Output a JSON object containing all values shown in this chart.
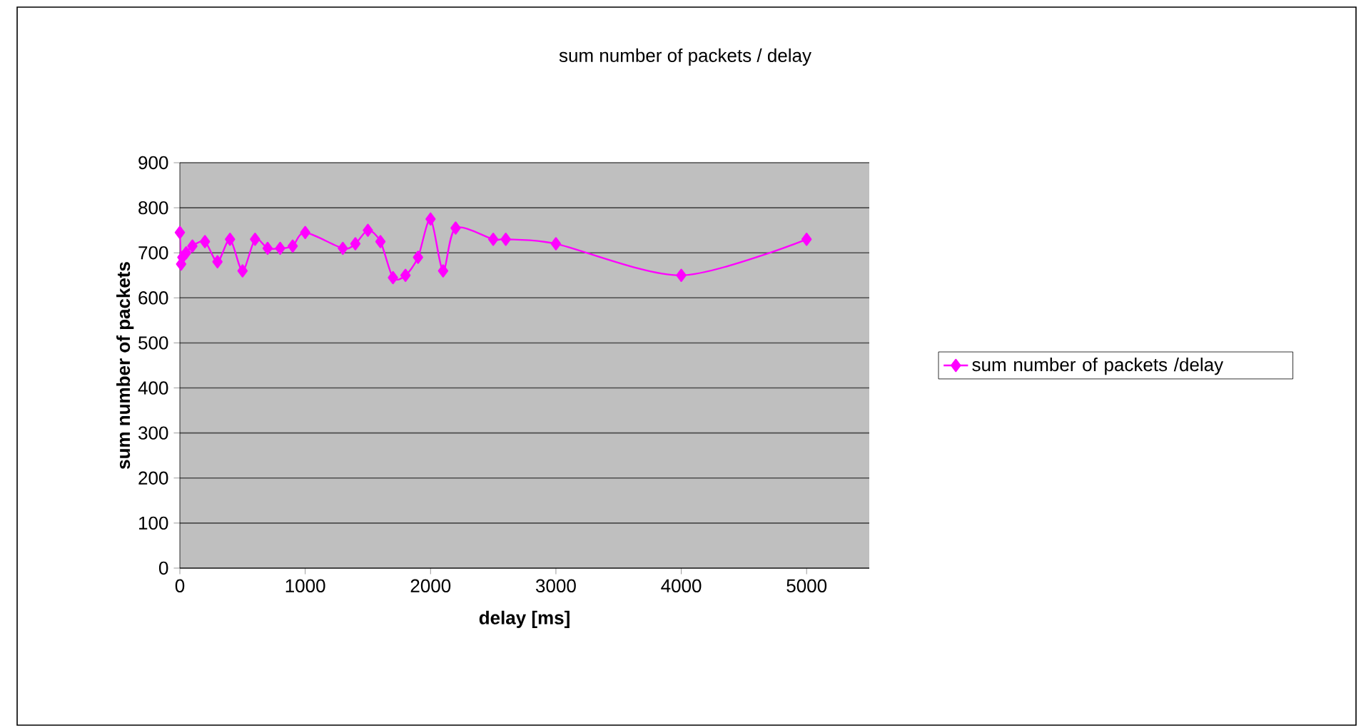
{
  "chart_data": {
    "type": "line",
    "title": "sum number of packets / delay",
    "xlabel": "delay [ms]",
    "ylabel": "sum number of packets",
    "x": [
      0,
      10,
      20,
      50,
      100,
      200,
      300,
      400,
      500,
      600,
      700,
      800,
      900,
      1000,
      1300,
      1400,
      1500,
      1600,
      1700,
      1800,
      1900,
      2000,
      2100,
      2200,
      2500,
      2600,
      3000,
      4000,
      5000
    ],
    "series": [
      {
        "name": "sum number of packets /delay",
        "color": "#ff00ff",
        "values": [
          745,
          675,
          690,
          700,
          715,
          725,
          680,
          730,
          660,
          730,
          710,
          710,
          715,
          745,
          710,
          720,
          750,
          725,
          645,
          650,
          690,
          775,
          660,
          755,
          730,
          730,
          720,
          650,
          730
        ]
      }
    ],
    "xlim": [
      0,
      5500
    ],
    "xticks": [
      0,
      1000,
      2000,
      3000,
      4000,
      5000
    ],
    "ylim": [
      0,
      900
    ],
    "yticks": [
      0,
      100,
      200,
      300,
      400,
      500,
      600,
      700,
      800,
      900
    ],
    "grid": "y",
    "legend": "right",
    "marker": "diamond",
    "line_style": "solid"
  }
}
